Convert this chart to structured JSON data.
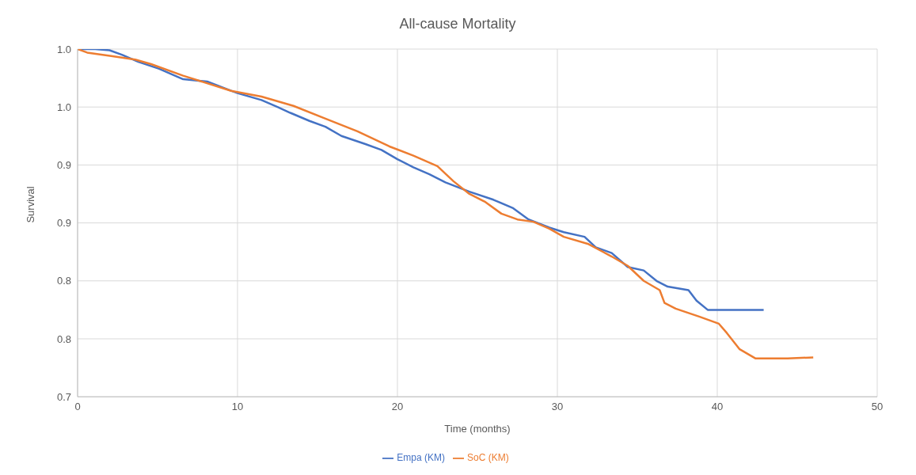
{
  "chart_data": {
    "type": "line",
    "title": "All-cause Mortality",
    "xlabel": "Time (months)",
    "ylabel": "Survival",
    "xlim": [
      0,
      50
    ],
    "xticks": [
      0,
      10,
      20,
      30,
      40,
      50
    ],
    "ylim": [
      0.7,
      1.0
    ],
    "yticks": [
      {
        "value": 0.7,
        "label": "0.7"
      },
      {
        "value": 0.75,
        "label": "0.8"
      },
      {
        "value": 0.8,
        "label": "0.8"
      },
      {
        "value": 0.85,
        "label": "0.9"
      },
      {
        "value": 0.9,
        "label": "0.9"
      },
      {
        "value": 0.95,
        "label": "1.0"
      },
      {
        "value": 1.0,
        "label": "1.0"
      }
    ],
    "grid": true,
    "legend": "bottom",
    "marker": "none",
    "line_style": "solid",
    "series": [
      {
        "name": "Empa (KM)",
        "color": "#4472c4",
        "x": [
          0,
          1.1,
          2.0,
          2.8,
          3.8,
          5.1,
          6.6,
          8.1,
          9.6,
          10,
          11.5,
          12.5,
          13.3,
          14.5,
          15.5,
          16.5,
          18.0,
          19.0,
          20.0,
          21.0,
          22.0,
          23.0,
          24.5,
          26.0,
          27.2,
          28.2,
          29.5,
          30.4,
          31.7,
          32.4,
          33.4,
          34.4,
          35.4,
          36.2,
          36.9,
          38.2,
          38.7,
          39.4,
          42.9
        ],
        "values": [
          1.0,
          1.0,
          0.999,
          0.995,
          0.989,
          0.983,
          0.974,
          0.972,
          0.964,
          0.962,
          0.956,
          0.95,
          0.945,
          0.938,
          0.933,
          0.925,
          0.918,
          0.913,
          0.905,
          0.898,
          0.892,
          0.885,
          0.877,
          0.87,
          0.863,
          0.853,
          0.846,
          0.842,
          0.838,
          0.829,
          0.824,
          0.812,
          0.809,
          0.8,
          0.795,
          0.792,
          0.783,
          0.775,
          0.775
        ]
      },
      {
        "name": "SoC (KM)",
        "color": "#ed7d31",
        "x": [
          0,
          0.6,
          2.1,
          3.6,
          4.6,
          6.6,
          9.6,
          11.5,
          13.5,
          15.5,
          17.5,
          19.5,
          21.0,
          22.5,
          23.5,
          24.5,
          25.5,
          26.5,
          27.5,
          28.5,
          29.5,
          30.4,
          31.9,
          33.4,
          34.4,
          35.4,
          36.4,
          36.7,
          37.4,
          38.9,
          40.1,
          40.6,
          41.4,
          42.4,
          44.4,
          46.0
        ],
        "values": [
          1.0,
          0.997,
          0.994,
          0.991,
          0.987,
          0.977,
          0.964,
          0.959,
          0.951,
          0.94,
          0.929,
          0.916,
          0.908,
          0.899,
          0.886,
          0.875,
          0.868,
          0.858,
          0.853,
          0.851,
          0.845,
          0.838,
          0.832,
          0.821,
          0.813,
          0.8,
          0.792,
          0.781,
          0.776,
          0.769,
          0.763,
          0.755,
          0.741,
          0.733,
          0.733,
          0.734
        ]
      }
    ]
  }
}
